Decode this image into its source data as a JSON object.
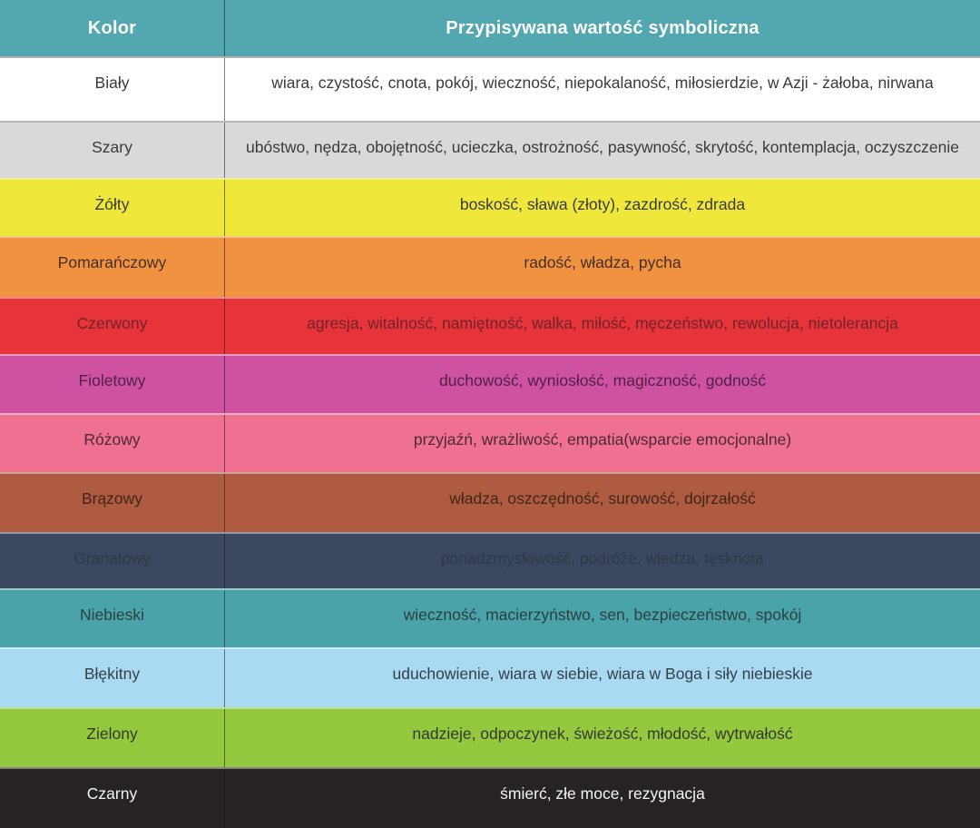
{
  "table": {
    "header": {
      "color_column_label": "Kolor",
      "value_column_label": "Przypisywana wartość symboliczna",
      "bg": "#52A7B1",
      "text_color": "#FCFCFC"
    },
    "rows": [
      {
        "color": "Biały",
        "meanings": "wiara, czystość, cnota, pokój, wieczność, niepokalaność, miłosierdzie, w Azji - żałoba, nirwana",
        "bg": "#FFFFFF",
        "text_color": "#3A3A3A"
      },
      {
        "color": "Szary",
        "meanings": "ubóstwo, nędza, obojętność, ucieczka, ostrożność, pasywność, skrytość, kontemplacja, oczyszczenie",
        "bg": "#D9D9D9",
        "text_color": "#3A3A3A"
      },
      {
        "color": "Żółty",
        "meanings": "boskość, sława (złoty), zazdrość, zdrada",
        "bg": "#EFE83B",
        "text_color": "#3A3A3A"
      },
      {
        "color": "Pomarańczowy",
        "meanings": "radość, władza, pycha",
        "bg": "#F0923F",
        "text_color": "#433021"
      },
      {
        "color": "Czerwony",
        "meanings": "agresja, witalność, namiętność, walka, miłość, męczeństwo, rewolucja, nietolerancja",
        "bg": "#E7333A",
        "text_color": "#6E2427"
      },
      {
        "color": "Fioletowy",
        "meanings": "duchowość, wyniosłość, magiczność, godność",
        "bg": "#CE51A2",
        "text_color": "#512247"
      },
      {
        "color": "Różowy",
        "meanings": "przyjaźń, wrażliwość, empatia(wsparcie emocjonalne)",
        "bg": "#EF7090",
        "text_color": "#4B2A34"
      },
      {
        "color": "Brązowy",
        "meanings": "władza, oszczędność, surowość, dojrzałość",
        "bg": "#AE5B41",
        "text_color": "#402619"
      },
      {
        "color": "Granatowy",
        "meanings": "ponadzmysłowość, podróże, wiedza, tęsknota",
        "bg": "#3B4860",
        "text_color": "#2E3949"
      },
      {
        "color": "Niebieski",
        "meanings": "wieczność, macierzyństwo, sen, bezpieczeństwo, spokój",
        "bg": "#49A3A8",
        "text_color": "#2C3E40"
      },
      {
        "color": "Błękitny",
        "meanings": "uduchowienie, wiara w siebie, wiara w Boga i siły niebieskie",
        "bg": "#A9DAF2",
        "text_color": "#344049"
      },
      {
        "color": "Zielony",
        "meanings": "nadzieje, odpoczynek, świeżość, młodość, wytrwałość",
        "bg": "#93C83F",
        "text_color": "#333A28"
      },
      {
        "color": "Czarny",
        "meanings": "śmierć, złe moce, rezygnacja",
        "bg": "#262322",
        "text_color": "#F5F5F5"
      }
    ]
  }
}
